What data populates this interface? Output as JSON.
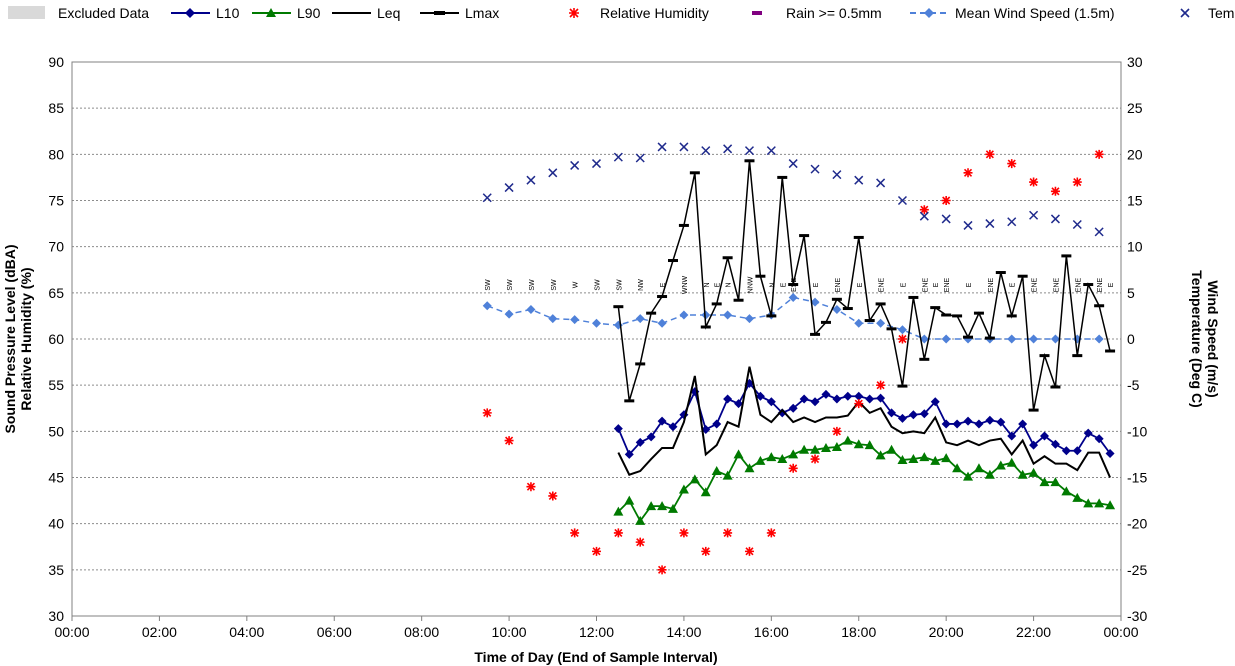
{
  "chart_data": {
    "type": "line",
    "xlabel": "Time of Day (End of Sample Interval)",
    "ylabel": [
      "Sound Pressure Level (dBA)",
      "Relative Humidity (%)"
    ],
    "y2label": [
      "Wind Speed (m/s)",
      "Temperature (Deg C)"
    ],
    "xlim": [
      0,
      24
    ],
    "ylim": [
      30,
      90
    ],
    "y2lim": [
      -30,
      30
    ],
    "xticks": [
      "00:00",
      "02:00",
      "04:00",
      "06:00",
      "08:00",
      "10:00",
      "12:00",
      "14:00",
      "16:00",
      "18:00",
      "20:00",
      "22:00",
      "00:00"
    ],
    "yticks": [
      "30",
      "35",
      "40",
      "45",
      "50",
      "55",
      "60",
      "65",
      "70",
      "75",
      "80",
      "85",
      "90"
    ],
    "y2ticks": [
      "-30",
      "-25",
      "-20",
      "-15",
      "-10",
      "-5",
      "0",
      "5",
      "10",
      "15",
      "20",
      "25",
      "30"
    ],
    "grid": "horizontal dotted",
    "legend_position": "top",
    "legend": [
      "Excluded Data",
      "L10",
      "L90",
      "Leq",
      "Lmax",
      "Relative Humidity",
      "Rain >= 0.5mm",
      "Mean Wind Speed (1.5m)",
      "Temp"
    ],
    "colors": {
      "excluded": "#d9d9d9",
      "l10": "#00008b",
      "l90": "#007a00",
      "leq": "#000000",
      "lmax": "#000000",
      "humidity": "#ff0000",
      "rain": "#800080",
      "wind": "#4f81d9",
      "temp": "#1f2a8c"
    },
    "series": {
      "l10": [
        [
          12.5,
          50.3
        ],
        [
          12.75,
          47.5
        ],
        [
          13.0,
          48.8
        ],
        [
          13.25,
          49.4
        ],
        [
          13.5,
          51.1
        ],
        [
          13.75,
          50.5
        ],
        [
          14.0,
          51.8
        ],
        [
          14.25,
          54.3
        ],
        [
          14.5,
          50.2
        ],
        [
          14.75,
          50.8
        ],
        [
          15.0,
          53.5
        ],
        [
          15.25,
          53.0
        ],
        [
          15.5,
          55.2
        ],
        [
          15.75,
          53.8
        ],
        [
          16.0,
          53.2
        ],
        [
          16.25,
          52.0
        ],
        [
          16.5,
          52.5
        ],
        [
          16.75,
          53.5
        ],
        [
          17.0,
          53.2
        ],
        [
          17.25,
          54.0
        ],
        [
          17.5,
          53.5
        ],
        [
          17.75,
          53.8
        ],
        [
          18.0,
          53.8
        ],
        [
          18.25,
          53.5
        ],
        [
          18.5,
          53.6
        ],
        [
          18.75,
          52.0
        ],
        [
          19.0,
          51.4
        ],
        [
          19.25,
          51.8
        ],
        [
          19.5,
          51.9
        ],
        [
          19.75,
          53.2
        ],
        [
          20.0,
          50.8
        ],
        [
          20.25,
          50.8
        ],
        [
          20.5,
          51.1
        ],
        [
          20.75,
          50.8
        ],
        [
          21.0,
          51.2
        ],
        [
          21.25,
          51.0
        ],
        [
          21.5,
          49.5
        ],
        [
          21.75,
          50.8
        ],
        [
          22.0,
          48.5
        ],
        [
          22.25,
          49.5
        ],
        [
          22.5,
          48.6
        ],
        [
          22.75,
          47.9
        ],
        [
          23.0,
          47.9
        ],
        [
          23.25,
          49.8
        ],
        [
          23.5,
          49.2
        ],
        [
          23.75,
          47.6
        ]
      ],
      "l90": [
        [
          12.5,
          41.3
        ],
        [
          12.75,
          42.5
        ],
        [
          13.0,
          40.3
        ],
        [
          13.25,
          41.9
        ],
        [
          13.5,
          41.9
        ],
        [
          13.75,
          41.6
        ],
        [
          14.0,
          43.7
        ],
        [
          14.25,
          44.8
        ],
        [
          14.5,
          43.4
        ],
        [
          14.75,
          45.7
        ],
        [
          15.0,
          45.2
        ],
        [
          15.25,
          47.5
        ],
        [
          15.5,
          46.0
        ],
        [
          15.75,
          46.8
        ],
        [
          16.0,
          47.2
        ],
        [
          16.25,
          47.0
        ],
        [
          16.5,
          47.5
        ],
        [
          16.75,
          48.0
        ],
        [
          17.0,
          48.0
        ],
        [
          17.25,
          48.2
        ],
        [
          17.5,
          48.3
        ],
        [
          17.75,
          49.0
        ],
        [
          18.0,
          48.6
        ],
        [
          18.25,
          48.5
        ],
        [
          18.5,
          47.4
        ],
        [
          18.75,
          48.0
        ],
        [
          19.0,
          46.9
        ],
        [
          19.25,
          47.0
        ],
        [
          19.5,
          47.2
        ],
        [
          19.75,
          46.8
        ],
        [
          20.0,
          47.1
        ],
        [
          20.25,
          46.0
        ],
        [
          20.5,
          45.1
        ],
        [
          20.75,
          46.0
        ],
        [
          21.0,
          45.3
        ],
        [
          21.25,
          46.3
        ],
        [
          21.5,
          46.6
        ],
        [
          21.75,
          45.3
        ],
        [
          22.0,
          45.5
        ],
        [
          22.25,
          44.5
        ],
        [
          22.5,
          44.5
        ],
        [
          22.75,
          43.5
        ],
        [
          23.0,
          42.8
        ],
        [
          23.25,
          42.2
        ],
        [
          23.5,
          42.2
        ],
        [
          23.75,
          42.0
        ]
      ],
      "leq": [
        [
          12.5,
          47.7
        ],
        [
          12.75,
          45.3
        ],
        [
          13.0,
          45.7
        ],
        [
          13.25,
          47.0
        ],
        [
          13.5,
          48.2
        ],
        [
          13.75,
          48.2
        ],
        [
          14.0,
          51.0
        ],
        [
          14.25,
          56.0
        ],
        [
          14.5,
          47.5
        ],
        [
          14.75,
          48.5
        ],
        [
          15.0,
          51.0
        ],
        [
          15.25,
          50.5
        ],
        [
          15.5,
          57.0
        ],
        [
          15.75,
          51.8
        ],
        [
          16.0,
          51.0
        ],
        [
          16.25,
          52.3
        ],
        [
          16.5,
          51.0
        ],
        [
          16.75,
          51.5
        ],
        [
          17.0,
          51.0
        ],
        [
          17.25,
          51.5
        ],
        [
          17.5,
          51.5
        ],
        [
          17.75,
          51.7
        ],
        [
          18.0,
          53.2
        ],
        [
          18.25,
          52.0
        ],
        [
          18.5,
          52.5
        ],
        [
          18.75,
          50.5
        ],
        [
          19.0,
          49.8
        ],
        [
          19.25,
          50.0
        ],
        [
          19.5,
          49.8
        ],
        [
          19.75,
          51.5
        ],
        [
          20.0,
          48.8
        ],
        [
          20.25,
          48.5
        ],
        [
          20.5,
          49.0
        ],
        [
          20.75,
          48.5
        ],
        [
          21.0,
          49.0
        ],
        [
          21.25,
          49.2
        ],
        [
          21.5,
          47.5
        ],
        [
          21.75,
          49.0
        ],
        [
          22.0,
          46.5
        ],
        [
          22.25,
          47.3
        ],
        [
          22.5,
          46.5
        ],
        [
          22.75,
          46.5
        ],
        [
          23.0,
          45.8
        ],
        [
          23.25,
          47.7
        ],
        [
          23.5,
          47.7
        ],
        [
          23.75,
          45.0
        ]
      ],
      "lmax": [
        [
          12.5,
          63.5
        ],
        [
          12.75,
          53.3
        ],
        [
          13.0,
          57.3
        ],
        [
          13.25,
          62.8
        ],
        [
          13.5,
          64.6
        ],
        [
          13.75,
          68.5
        ],
        [
          14.0,
          72.3
        ],
        [
          14.25,
          78.0
        ],
        [
          14.5,
          61.3
        ],
        [
          14.75,
          63.8
        ],
        [
          15.0,
          68.8
        ],
        [
          15.25,
          64.2
        ],
        [
          15.5,
          79.3
        ],
        [
          15.75,
          66.8
        ],
        [
          16.0,
          62.5
        ],
        [
          16.25,
          77.5
        ],
        [
          16.5,
          65.9
        ],
        [
          16.75,
          71.2
        ],
        [
          17.0,
          60.5
        ],
        [
          17.25,
          61.8
        ],
        [
          17.5,
          64.3
        ],
        [
          17.75,
          63.3
        ],
        [
          18.0,
          71.0
        ],
        [
          18.25,
          62.0
        ],
        [
          18.5,
          63.8
        ],
        [
          18.75,
          61.1
        ],
        [
          19.0,
          54.9
        ],
        [
          19.25,
          64.5
        ],
        [
          19.5,
          57.8
        ],
        [
          19.75,
          63.4
        ],
        [
          20.0,
          62.6
        ],
        [
          20.25,
          62.5
        ],
        [
          20.5,
          60.2
        ],
        [
          20.75,
          62.8
        ],
        [
          21.0,
          60.1
        ],
        [
          21.25,
          67.2
        ],
        [
          21.5,
          62.5
        ],
        [
          21.75,
          66.8
        ],
        [
          22.0,
          52.3
        ],
        [
          22.25,
          58.2
        ],
        [
          22.5,
          54.8
        ],
        [
          22.75,
          69.0
        ],
        [
          23.0,
          58.2
        ],
        [
          23.25,
          65.9
        ],
        [
          23.5,
          63.6
        ],
        [
          23.75,
          58.7
        ]
      ],
      "humidity": [
        [
          9.5,
          52
        ],
        [
          10.0,
          49
        ],
        [
          10.5,
          44
        ],
        [
          11.0,
          43
        ],
        [
          11.5,
          39
        ],
        [
          12.0,
          37
        ],
        [
          12.5,
          39
        ],
        [
          13.0,
          38
        ],
        [
          13.5,
          35
        ],
        [
          14.0,
          39
        ],
        [
          14.5,
          37
        ],
        [
          15.0,
          39
        ],
        [
          15.5,
          37
        ],
        [
          16.0,
          39
        ],
        [
          16.5,
          46
        ],
        [
          17.0,
          47
        ],
        [
          17.5,
          50
        ],
        [
          18.0,
          53
        ],
        [
          18.5,
          55
        ],
        [
          19.0,
          60
        ],
        [
          19.5,
          74
        ],
        [
          20.0,
          75
        ],
        [
          20.5,
          78
        ],
        [
          21.0,
          80
        ],
        [
          21.5,
          79
        ],
        [
          22.0,
          77
        ],
        [
          22.5,
          76
        ],
        [
          23.0,
          77
        ],
        [
          23.5,
          80
        ]
      ],
      "wind": [
        [
          9.5,
          3.6
        ],
        [
          10.0,
          2.7
        ],
        [
          10.5,
          3.2
        ],
        [
          11.0,
          2.2
        ],
        [
          11.5,
          2.1
        ],
        [
          12.0,
          1.7
        ],
        [
          12.5,
          1.5
        ],
        [
          13.0,
          2.2
        ],
        [
          13.5,
          1.7
        ],
        [
          14.0,
          2.6
        ],
        [
          14.5,
          2.6
        ],
        [
          15.0,
          2.6
        ],
        [
          15.5,
          2.2
        ],
        [
          16.0,
          2.6
        ],
        [
          16.5,
          4.5
        ],
        [
          17.0,
          4.0
        ],
        [
          17.5,
          3.2
        ],
        [
          18.0,
          1.7
        ],
        [
          18.5,
          1.7
        ],
        [
          19.0,
          1.0
        ],
        [
          19.5,
          0.0
        ],
        [
          20.0,
          0.0
        ],
        [
          20.5,
          0.0
        ],
        [
          21.0,
          0.0
        ],
        [
          21.5,
          0.0
        ],
        [
          22.0,
          0.0
        ],
        [
          22.5,
          0.0
        ],
        [
          23.0,
          0.0
        ],
        [
          23.5,
          0.0
        ]
      ],
      "wind_direction": [
        "SW",
        "SW",
        "SW",
        "SW",
        "W",
        "SW",
        "SW",
        "NW",
        "E",
        "WNW",
        "N",
        "E",
        "N",
        "NNW",
        "N",
        "E",
        "ESE",
        "E",
        "ENE",
        "E",
        "ENE",
        "E",
        "ENE",
        "E",
        "ENE",
        "E",
        "ENE",
        "E",
        "ENE",
        "ENE",
        "ENE",
        "ENE",
        "E"
      ],
      "wind_direction_x": [
        9.5,
        10.0,
        10.5,
        11.0,
        11.5,
        12.0,
        12.5,
        13.0,
        13.5,
        14.0,
        14.5,
        14.75,
        15.0,
        15.5,
        16.0,
        16.25,
        16.5,
        17.0,
        17.5,
        18.0,
        18.5,
        19.0,
        19.5,
        19.75,
        20.0,
        20.5,
        21.0,
        21.5,
        22.0,
        22.5,
        23.0,
        23.5,
        23.75
      ],
      "temp": [
        [
          9.5,
          15.3
        ],
        [
          10.0,
          16.4
        ],
        [
          10.5,
          17.2
        ],
        [
          11.0,
          18.0
        ],
        [
          11.5,
          18.8
        ],
        [
          12.0,
          19.0
        ],
        [
          12.5,
          19.7
        ],
        [
          13.0,
          19.6
        ],
        [
          13.5,
          20.8
        ],
        [
          14.0,
          20.8
        ],
        [
          14.5,
          20.4
        ],
        [
          15.0,
          20.6
        ],
        [
          15.5,
          20.4
        ],
        [
          16.0,
          20.4
        ],
        [
          16.5,
          19.0
        ],
        [
          17.0,
          18.4
        ],
        [
          17.5,
          17.8
        ],
        [
          18.0,
          17.2
        ],
        [
          18.5,
          16.9
        ],
        [
          19.0,
          15.0
        ],
        [
          19.5,
          13.3
        ],
        [
          20.0,
          13.0
        ],
        [
          20.5,
          12.3
        ],
        [
          21.0,
          12.5
        ],
        [
          21.5,
          12.7
        ],
        [
          22.0,
          13.4
        ],
        [
          22.5,
          13.0
        ],
        [
          23.0,
          12.4
        ],
        [
          23.5,
          11.6
        ]
      ]
    }
  }
}
